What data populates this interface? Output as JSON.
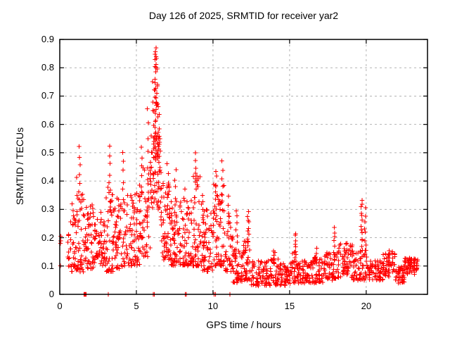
{
  "chart_data": {
    "type": "scatter",
    "title": "Day 126 of 2025, SRMTID for receiver yar2",
    "xlabel": "GPS time / hours",
    "ylabel": "SRMTID / TECUs",
    "xlim": [
      0,
      24
    ],
    "ylim": [
      0,
      0.9
    ],
    "xtick_values": [
      0,
      5,
      10,
      15,
      20
    ],
    "xtick_labels": [
      "0",
      "5",
      "10",
      "15",
      "20"
    ],
    "ytick_values": [
      0,
      0.1,
      0.2,
      0.3,
      0.4,
      0.5,
      0.6,
      0.7,
      0.8,
      0.9
    ],
    "ytick_labels": [
      "0",
      "0.1",
      "0.2",
      "0.3",
      "0.4",
      "0.5",
      "0.6",
      "0.7",
      "0.8",
      "0.9"
    ],
    "grid": true,
    "grid_style": "dashed",
    "legend": "none",
    "marker": "plus",
    "marker_size_px": 7,
    "marker_color": "#ff0000",
    "grid_color": "#b3b3b3",
    "border_color": "#000000",
    "series_name": "SRMTID receiver yar2, day 126 of 2025",
    "description": "Dense scatter: band 0.08-0.35 TECU from 0.5h to 11.2h with vertical spike columns (peak 0.87 at 6.25h); after 11.2h band drops to 0.03-0.15 with small spikes; isolated zero-value points sit on the x-axis.",
    "rng_seed": 126,
    "band_segments": [
      {
        "h0": 0.02,
        "h1": 0.1,
        "n": 4,
        "lo": 0.1,
        "hi": 0.21,
        "skew": 1.0
      },
      {
        "h0": 0.5,
        "h1": 0.75,
        "n": 14,
        "lo": 0.1,
        "hi": 0.26,
        "skew": 1.3
      },
      {
        "h0": 0.75,
        "h1": 1.1,
        "n": 30,
        "lo": 0.08,
        "hi": 0.33,
        "skew": 1.5
      },
      {
        "h0": 1.1,
        "h1": 1.6,
        "n": 45,
        "lo": 0.08,
        "hi": 0.42,
        "skew": 1.8
      },
      {
        "h0": 1.6,
        "h1": 2.2,
        "n": 50,
        "lo": 0.09,
        "hi": 0.32,
        "skew": 1.6
      },
      {
        "h0": 2.2,
        "h1": 3.0,
        "n": 60,
        "lo": 0.1,
        "hi": 0.3,
        "skew": 1.4
      },
      {
        "h0": 3.0,
        "h1": 3.6,
        "n": 50,
        "lo": 0.08,
        "hi": 0.38,
        "skew": 1.7
      },
      {
        "h0": 3.6,
        "h1": 4.4,
        "n": 60,
        "lo": 0.09,
        "hi": 0.34,
        "skew": 1.5
      },
      {
        "h0": 4.4,
        "h1": 5.2,
        "n": 65,
        "lo": 0.1,
        "hi": 0.36,
        "skew": 1.5
      },
      {
        "h0": 5.2,
        "h1": 5.9,
        "n": 55,
        "lo": 0.13,
        "hi": 0.45,
        "skew": 1.4
      },
      {
        "h0": 5.9,
        "h1": 6.6,
        "n": 70,
        "lo": 0.3,
        "hi": 0.56,
        "skew": 1.0
      },
      {
        "h0": 6.0,
        "h1": 6.45,
        "n": 25,
        "lo": 0.5,
        "hi": 0.8,
        "skew": 1.3
      },
      {
        "h0": 6.6,
        "h1": 7.2,
        "n": 55,
        "lo": 0.12,
        "hi": 0.4,
        "skew": 1.4
      },
      {
        "h0": 7.2,
        "h1": 8.0,
        "n": 65,
        "lo": 0.1,
        "hi": 0.33,
        "skew": 1.5
      },
      {
        "h0": 8.0,
        "h1": 8.7,
        "n": 60,
        "lo": 0.1,
        "hi": 0.38,
        "skew": 1.6
      },
      {
        "h0": 8.7,
        "h1": 9.3,
        "n": 50,
        "lo": 0.1,
        "hi": 0.42,
        "skew": 1.7
      },
      {
        "h0": 9.3,
        "h1": 10.0,
        "n": 55,
        "lo": 0.08,
        "hi": 0.3,
        "skew": 1.5
      },
      {
        "h0": 10.0,
        "h1": 10.8,
        "n": 60,
        "lo": 0.1,
        "hi": 0.4,
        "skew": 1.6
      },
      {
        "h0": 10.8,
        "h1": 11.3,
        "n": 35,
        "lo": 0.08,
        "hi": 0.3,
        "skew": 1.5
      },
      {
        "h0": 11.3,
        "h1": 12.0,
        "n": 50,
        "lo": 0.04,
        "hi": 0.16,
        "skew": 1.4
      },
      {
        "h0": 12.0,
        "h1": 12.5,
        "n": 35,
        "lo": 0.05,
        "hi": 0.2,
        "skew": 1.6
      },
      {
        "h0": 12.5,
        "h1": 13.5,
        "n": 60,
        "lo": 0.03,
        "hi": 0.12,
        "skew": 1.3
      },
      {
        "h0": 13.5,
        "h1": 14.3,
        "n": 50,
        "lo": 0.03,
        "hi": 0.13,
        "skew": 1.4
      },
      {
        "h0": 14.3,
        "h1": 15.1,
        "n": 50,
        "lo": 0.03,
        "hi": 0.11,
        "skew": 1.3
      },
      {
        "h0": 15.1,
        "h1": 15.7,
        "n": 40,
        "lo": 0.04,
        "hi": 0.15,
        "skew": 1.4
      },
      {
        "h0": 15.7,
        "h1": 16.6,
        "n": 55,
        "lo": 0.04,
        "hi": 0.12,
        "skew": 1.3
      },
      {
        "h0": 16.6,
        "h1": 17.3,
        "n": 45,
        "lo": 0.04,
        "hi": 0.14,
        "skew": 1.4
      },
      {
        "h0": 17.3,
        "h1": 18.2,
        "n": 55,
        "lo": 0.05,
        "hi": 0.15,
        "skew": 1.4
      },
      {
        "h0": 18.2,
        "h1": 19.1,
        "n": 60,
        "lo": 0.06,
        "hi": 0.18,
        "skew": 1.3
      },
      {
        "h0": 19.1,
        "h1": 20.2,
        "n": 65,
        "lo": 0.05,
        "hi": 0.16,
        "skew": 1.4
      },
      {
        "h0": 20.2,
        "h1": 21.1,
        "n": 55,
        "lo": 0.05,
        "hi": 0.12,
        "skew": 1.3
      },
      {
        "h0": 21.1,
        "h1": 21.9,
        "n": 50,
        "lo": 0.06,
        "hi": 0.15,
        "skew": 1.3
      },
      {
        "h0": 21.9,
        "h1": 22.5,
        "n": 40,
        "lo": 0.04,
        "hi": 0.1,
        "skew": 1.2
      },
      {
        "h0": 22.5,
        "h1": 23.35,
        "n": 55,
        "lo": 0.07,
        "hi": 0.13,
        "skew": 0.9
      }
    ],
    "spike_columns": [
      {
        "h": 1.28,
        "vmin": 0.33,
        "vmax": 0.52,
        "n": 7
      },
      {
        "h": 3.25,
        "vmin": 0.3,
        "vmax": 0.52,
        "n": 8
      },
      {
        "h": 4.15,
        "vmin": 0.3,
        "vmax": 0.5,
        "n": 7
      },
      {
        "h": 5.35,
        "vmin": 0.35,
        "vmax": 0.52,
        "n": 6
      },
      {
        "h": 5.75,
        "vmin": 0.45,
        "vmax": 0.65,
        "n": 5
      },
      {
        "h": 6.25,
        "vmin": 0.55,
        "vmax": 0.87,
        "n": 16
      },
      {
        "h": 6.3,
        "vmin": 0.8,
        "vmax": 0.86,
        "n": 5
      },
      {
        "h": 6.5,
        "vmin": 0.4,
        "vmax": 0.63,
        "n": 6
      },
      {
        "h": 7.05,
        "vmin": 0.28,
        "vmax": 0.46,
        "n": 6
      },
      {
        "h": 7.55,
        "vmin": 0.28,
        "vmax": 0.44,
        "n": 6
      },
      {
        "h": 8.85,
        "vmin": 0.32,
        "vmax": 0.5,
        "n": 8
      },
      {
        "h": 9.35,
        "vmin": 0.25,
        "vmax": 0.35,
        "n": 5
      },
      {
        "h": 10.2,
        "vmin": 0.28,
        "vmax": 0.44,
        "n": 7
      },
      {
        "h": 10.6,
        "vmin": 0.3,
        "vmax": 0.47,
        "n": 7
      },
      {
        "h": 11.0,
        "vmin": 0.22,
        "vmax": 0.35,
        "n": 5
      },
      {
        "h": 11.55,
        "vmin": 0.18,
        "vmax": 0.3,
        "n": 6
      },
      {
        "h": 12.3,
        "vmin": 0.17,
        "vmax": 0.29,
        "n": 10
      },
      {
        "h": 14.0,
        "vmin": 0.11,
        "vmax": 0.155,
        "n": 6
      },
      {
        "h": 15.35,
        "vmin": 0.13,
        "vmax": 0.215,
        "n": 8
      },
      {
        "h": 16.75,
        "vmin": 0.11,
        "vmax": 0.16,
        "n": 5
      },
      {
        "h": 17.9,
        "vmin": 0.13,
        "vmax": 0.24,
        "n": 7
      },
      {
        "h": 19.7,
        "vmin": 0.17,
        "vmax": 0.335,
        "n": 12
      },
      {
        "h": 19.95,
        "vmin": 0.15,
        "vmax": 0.3,
        "n": 8
      },
      {
        "h": 21.5,
        "vmin": 0.1,
        "vmax": 0.16,
        "n": 5
      },
      {
        "h": 22.85,
        "vmin": 0.08,
        "vmax": 0.13,
        "n": 6
      }
    ],
    "zero_value_points_h": [
      1.58,
      1.6,
      1.62,
      1.64,
      1.66,
      1.68,
      1.7,
      1.72,
      3.17,
      6.1,
      6.17,
      8.2,
      8.27,
      10.08,
      10.17,
      11.1
    ]
  }
}
